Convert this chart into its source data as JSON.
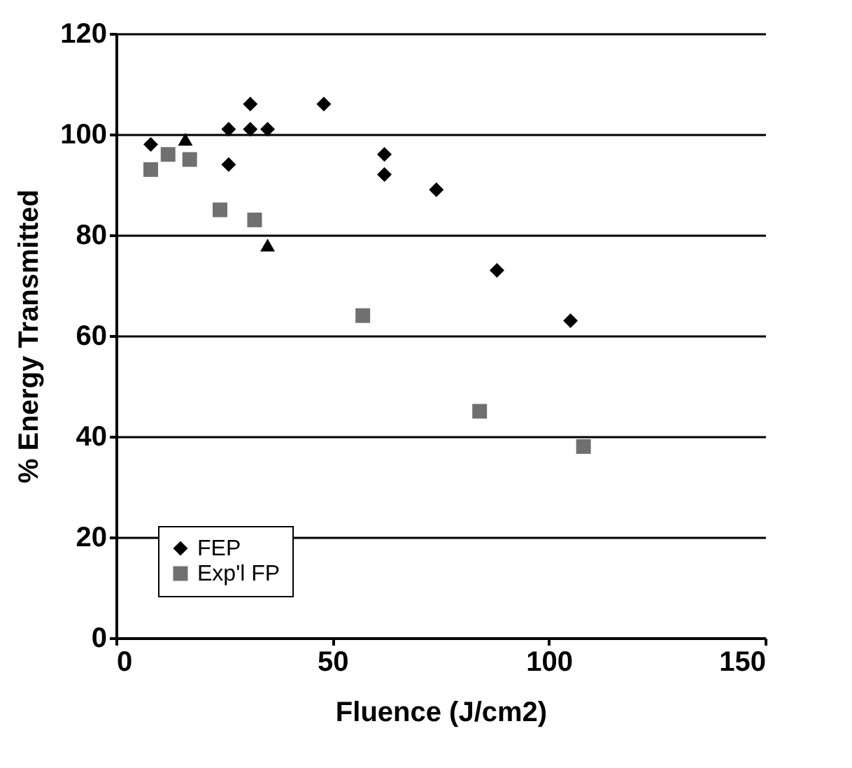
{
  "chart_data": {
    "type": "scatter",
    "xlabel": "Fluence (J/cm2)",
    "ylabel": "% Energy Transmitted",
    "xlim": [
      0,
      150
    ],
    "ylim": [
      0,
      120
    ],
    "xticks": [
      0,
      50,
      100,
      150
    ],
    "yticks": [
      0,
      20,
      40,
      60,
      80,
      100,
      120
    ],
    "grid": "y",
    "legend": "bottom left",
    "series": [
      {
        "name": "FEP",
        "color": "#000000",
        "marker": "diamond",
        "x": [
          8,
          26,
          26,
          31,
          31,
          35,
          48,
          62,
          62,
          74,
          88,
          105
        ],
        "values": [
          98,
          101,
          94,
          106,
          101,
          101,
          106,
          96,
          92,
          89,
          73,
          63
        ]
      },
      {
        "name": "Exp'l FP",
        "color": "#707070",
        "marker": "square",
        "x": [
          8,
          12,
          17,
          24,
          32,
          57,
          84,
          108
        ],
        "values": [
          93,
          96,
          95,
          85,
          83,
          64,
          45,
          38
        ]
      },
      {
        "color": "#000000",
        "marker": "triangle",
        "x": [
          16,
          35
        ],
        "values": [
          99,
          78
        ]
      }
    ]
  }
}
